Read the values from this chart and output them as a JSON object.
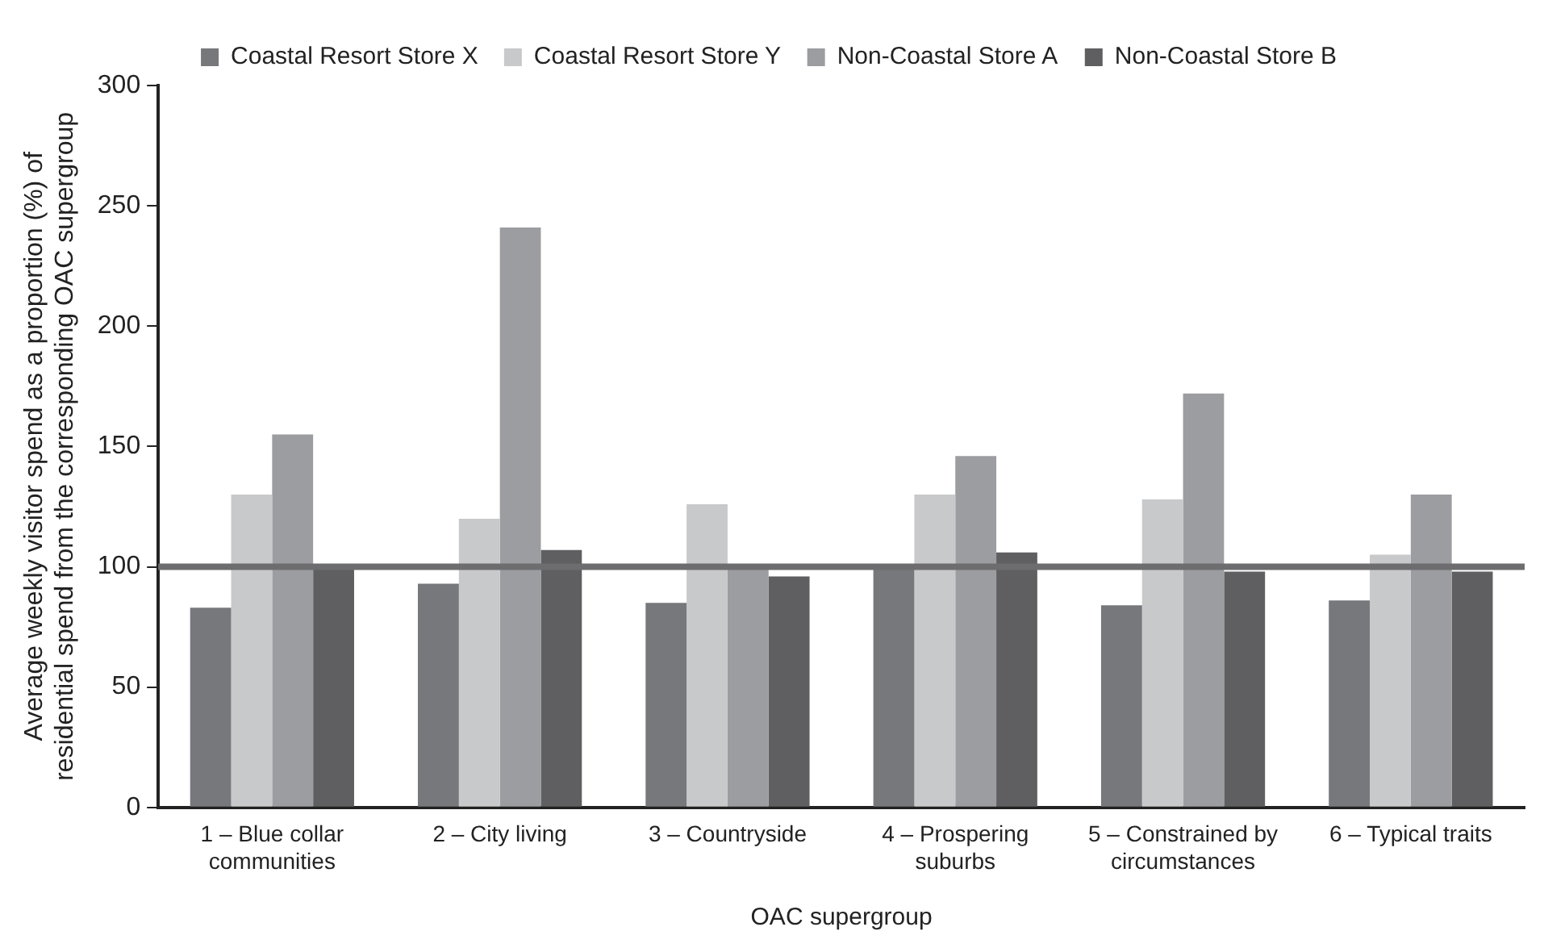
{
  "chart_data": {
    "type": "bar",
    "xlabel": "OAC supergroup",
    "ylabel": "Average weekly visitor spend as a proportion (%) of residential spend from the corresponding OAC supergroup",
    "categories": [
      "1 – Blue collar communities",
      "2 – City living",
      "3 – Countryside",
      "4 – Prospering suburbs",
      "5 – Constrained by circumstances",
      "6 – Typical traits"
    ],
    "series": [
      {
        "name": "Coastal Resort Store X",
        "color": "#77787c",
        "values": [
          83,
          93,
          85,
          100,
          84,
          86
        ]
      },
      {
        "name": "Coastal Resort Store Y",
        "color": "#c8c9cb",
        "values": [
          130,
          120,
          126,
          130,
          128,
          105
        ]
      },
      {
        "name": "Non-Coastal Store A",
        "color": "#9c9da1",
        "values": [
          155,
          241,
          100,
          146,
          172,
          130
        ]
      },
      {
        "name": "Non-Coastal Store B",
        "color": "#5f5f61",
        "values": [
          100,
          107,
          96,
          106,
          98,
          98
        ]
      }
    ],
    "ylim": [
      0,
      300
    ],
    "yticks": [
      0,
      50,
      100,
      150,
      200,
      250,
      300
    ],
    "grid": false,
    "legend": "top",
    "ref_lines": [
      {
        "axis": "y",
        "value": 100,
        "color": "#6d6d6f"
      }
    ]
  }
}
